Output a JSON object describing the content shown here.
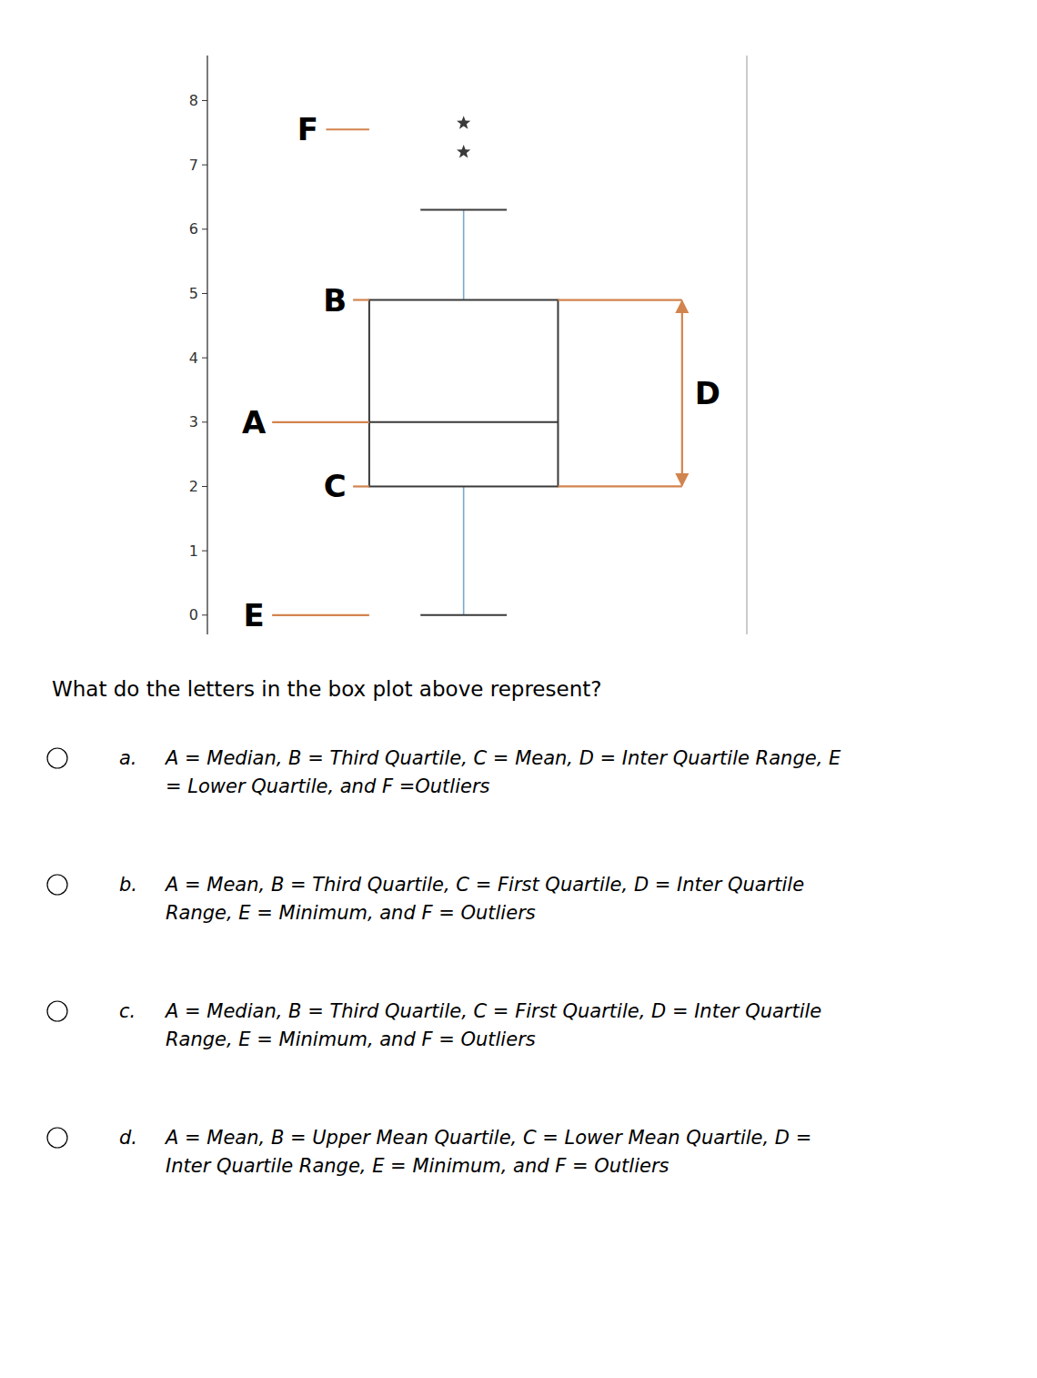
{
  "chart_data": {
    "type": "box",
    "ylim": [
      -0.3,
      8.7
    ],
    "yticks": [
      0,
      1,
      2,
      3,
      4,
      5,
      6,
      7,
      8
    ],
    "grid": false,
    "box": {
      "q1": 2.0,
      "median": 3.0,
      "q3": 4.9,
      "color": "#3a3a3a"
    },
    "whiskers": {
      "low": 0.0,
      "high": 6.3,
      "color": "#7AAACF"
    },
    "outliers": {
      "values": [
        7.65,
        7.2
      ],
      "color": "#3a3a3a"
    },
    "annotations": [
      {
        "text": "F",
        "y": 7.55,
        "color": "#D2844E"
      },
      {
        "text": "B",
        "y": 4.9,
        "color": "#D2844E"
      },
      {
        "text": "A",
        "y": 3.0,
        "color": "#D2844E"
      },
      {
        "text": "C",
        "y": 2.0,
        "color": "#D2844E"
      },
      {
        "text": "E",
        "y": 0.0,
        "color": "#D2844E"
      },
      {
        "text": "D",
        "y_range": [
          2.0,
          4.9
        ],
        "color": "#D2844E"
      }
    ],
    "question": "What do the letters in the box plot above represent?",
    "options": [
      {
        "letter": "a.",
        "text": "A = Median, B = Third Quartile, C = Mean, D = Inter Quartile Range, E\n= Lower Quartile, and F =Outliers"
      },
      {
        "letter": "b.",
        "text": "A = Mean, B = Third Quartile, C = First Quartile, D = Inter Quartile\nRange, E = Minimum, and F = Outliers"
      },
      {
        "letter": "c.",
        "text": "A = Median, B = Third Quartile, C = First Quartile, D = Inter Quartile\nRange, E = Minimum, and F = Outliers"
      },
      {
        "letter": "d.",
        "text": "A = Mean, B = Upper Mean Quartile, C = Lower Mean Quartile, D =\nInter Quartile Range, E = Minimum, and F = Outliers"
      }
    ]
  }
}
